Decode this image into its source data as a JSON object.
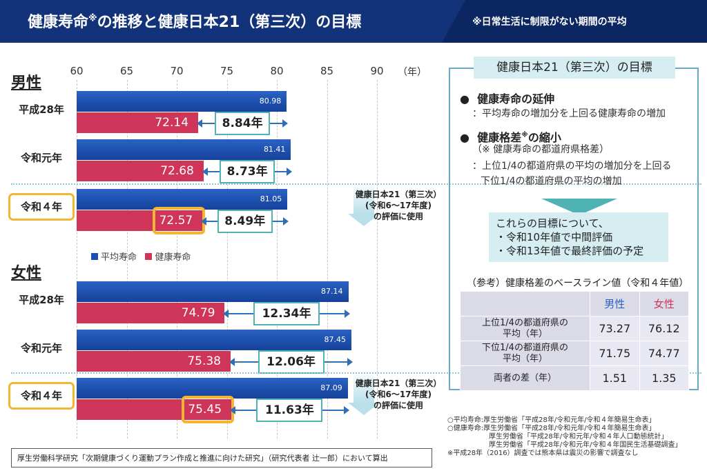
{
  "header": {
    "title": "健康寿命※の推移と健康日本21（第三次）の目標",
    "note": "※日常生活に制限がない期間の平均"
  },
  "chart_data": {
    "type": "bar",
    "xlim": [
      60,
      90
    ],
    "ticks": [
      "60",
      "65",
      "70",
      "75",
      "80",
      "85",
      "90"
    ],
    "unit": "（年）",
    "legend": {
      "avg": "平均寿命",
      "healthy": "健康寿命"
    },
    "groups": [
      {
        "label": "男性",
        "rows": [
          {
            "category": "平成28年",
            "avg": 80.98,
            "avg_label": "80.98",
            "healthy": 72.14,
            "healthy_label": "72.14",
            "gap": "8.84年"
          },
          {
            "category": "令和元年",
            "avg": 81.41,
            "avg_label": "81.41",
            "healthy": 72.68,
            "healthy_label": "72.68",
            "gap": "8.73年"
          },
          {
            "category": "令和４年",
            "avg": 81.05,
            "avg_label": "81.05",
            "healthy": 72.57,
            "healthy_label": "72.57",
            "gap": "8.49年"
          }
        ]
      },
      {
        "label": "女性",
        "rows": [
          {
            "category": "平成28年",
            "avg": 87.14,
            "avg_label": "87.14",
            "healthy": 74.79,
            "healthy_label": "74.79",
            "gap": "12.34年"
          },
          {
            "category": "令和元年",
            "avg": 87.45,
            "avg_label": "87.45",
            "healthy": 75.38,
            "healthy_label": "75.38",
            "gap": "12.06年"
          },
          {
            "category": "令和４年",
            "avg": 87.09,
            "avg_label": "87.09",
            "healthy": 75.45,
            "healthy_label": "75.45",
            "gap": "11.63年"
          }
        ]
      }
    ],
    "eval_note": [
      "健康日本21（第三次）",
      "(令和6～17年度)",
      "の評価に使用"
    ]
  },
  "colors": {
    "avg": "#1a4fb0",
    "healthy": "#cf3558",
    "highlight": "#f2b632",
    "accent": "#4fb3b3"
  },
  "citation": "厚生労働科学研究「次期健康づくり運動プラン作成と推進に向けた研究」（研究代表者 辻一郎）において算出",
  "sources": [
    "○平均寿命:厚生労働省「平成28年/令和元年/令和４年簡易生命表」",
    "○健康寿命:厚生労働省「平成28年/令和元年/令和４年簡易生命表」",
    "　　　　　　厚生労働省「平成28年/令和元年/令和４年人口動態統計」",
    "　　　　　　厚生労働省「平成28年/令和元年/令和４年国民生活基礎調査」",
    "※平成28年（2016）調査では熊本県は震災の影響で調査なし"
  ],
  "goals": {
    "title": "健康日本21（第三次）の目標",
    "goal1": {
      "heading": "健康寿命の延伸",
      "text": "：平均寿命の増加分を上回る健康寿命の増加"
    },
    "goal2": {
      "heading": "健康格差",
      "heading_sup": "※",
      "heading_tail": "の縮小",
      "note": "（※ 健康寿命の都道府県格差）",
      "text1": "：上位1/4の都道府県の平均の増加分を上回る",
      "text2": "下位1/4の都道府県の平均の増加"
    },
    "eval": [
      "これらの目標について、",
      "・令和10年値で中間評価",
      "・令和13年値で最終評価の予定"
    ]
  },
  "baseline": {
    "title": "（参考）健康格差のベースライン値（令和４年値）",
    "cols": [
      "男性",
      "女性"
    ],
    "rows": [
      {
        "label1": "上位1/4の都道府県の",
        "label2": "平均（年）",
        "m": "73.27",
        "f": "76.12"
      },
      {
        "label1": "下位1/4の都道府県の",
        "label2": "平均（年）",
        "m": "71.75",
        "f": "74.77"
      },
      {
        "label1": "両者の差（年）",
        "label2": "",
        "m": "1.51",
        "f": "1.35"
      }
    ]
  }
}
